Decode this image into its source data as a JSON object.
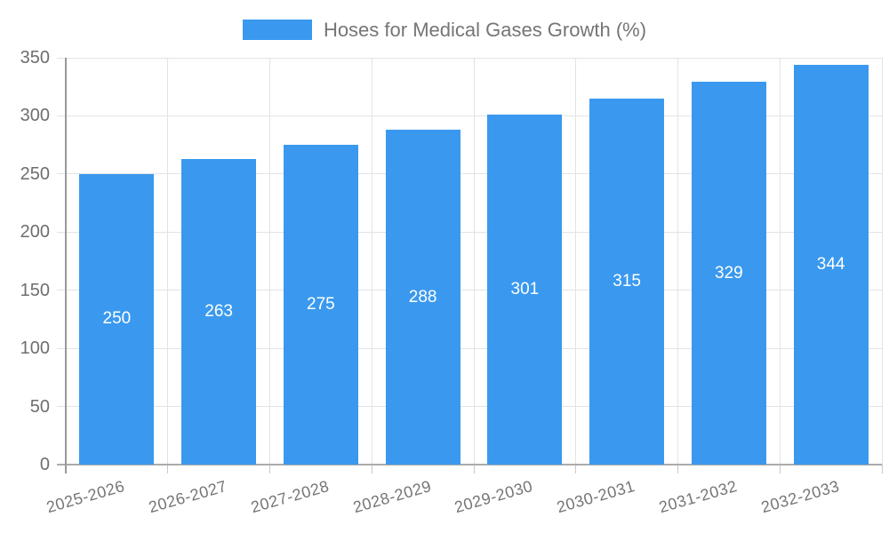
{
  "chart_data": {
    "type": "bar",
    "title": "",
    "legend": {
      "label": "Hoses for Medical Gases Growth (%)",
      "position": "top"
    },
    "categories": [
      "2025-2026",
      "2026-2027",
      "2027-2028",
      "2028-2029",
      "2029-2030",
      "2030-2031",
      "2031-2032",
      "2032-2033"
    ],
    "values": [
      250,
      263,
      275,
      288,
      301,
      315,
      329,
      344
    ],
    "xlabel": "",
    "ylabel": "",
    "ylim": [
      0,
      350
    ],
    "yticks": [
      0,
      50,
      100,
      150,
      200,
      250,
      300,
      350
    ],
    "grid": true,
    "x_tick_rotation_deg": -16,
    "value_labels": {
      "position": "center"
    },
    "colors": {
      "bar": "#3a99ee",
      "value_label_text": "#ffffff",
      "grid": "#e3e3e3",
      "x_tick_mark": "#c9c9c9",
      "axis_border": "#999999",
      "tick_text": "#6e6e6e",
      "legend_text": "#757575",
      "background": "#ffffff"
    }
  }
}
